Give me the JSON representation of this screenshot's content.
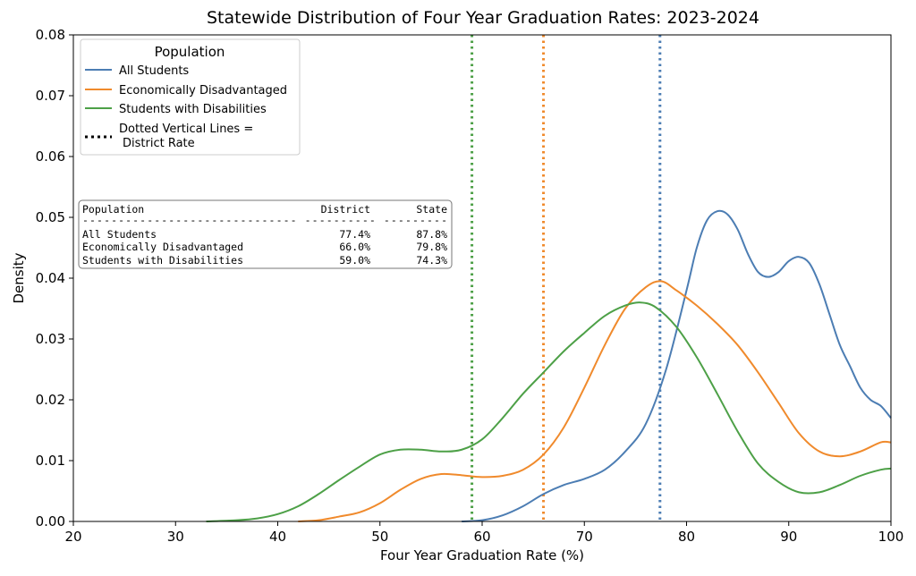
{
  "chart_data": {
    "type": "line",
    "title": "Statewide Distribution of Four Year Graduation Rates: 2023-2024",
    "xlabel": "Four Year Graduation Rate (%)",
    "ylabel": "Density",
    "xlim": [
      20,
      100
    ],
    "ylim": [
      0,
      0.08
    ],
    "x_ticks": [
      "20",
      "30",
      "40",
      "50",
      "60",
      "70",
      "80",
      "90",
      "100"
    ],
    "y_ticks": [
      "0.00",
      "0.01",
      "0.02",
      "0.03",
      "0.04",
      "0.05",
      "0.06",
      "0.07",
      "0.08"
    ],
    "grid": false,
    "legend": {
      "title": "Population",
      "placement": "upper-left",
      "entries": [
        "All Students",
        "Economically Disadvantaged",
        "Students with Disabilities"
      ],
      "extra_entry": "Dotted Vertical Lines =\n District Rate",
      "extra_entry_lines": [
        "Dotted Vertical Lines =",
        "District Rate"
      ]
    },
    "series": [
      {
        "name": "All Students",
        "color": "#4c7db3",
        "points": [
          [
            58,
            0
          ],
          [
            60,
            0.0002
          ],
          [
            62,
            0.001
          ],
          [
            64,
            0.0025
          ],
          [
            66,
            0.0045
          ],
          [
            68,
            0.006
          ],
          [
            70,
            0.007
          ],
          [
            72,
            0.0085
          ],
          [
            74,
            0.0115
          ],
          [
            76,
            0.016
          ],
          [
            78,
            0.025
          ],
          [
            80,
            0.038
          ],
          [
            81,
            0.045
          ],
          [
            82,
            0.0495
          ],
          [
            83,
            0.051
          ],
          [
            84,
            0.0505
          ],
          [
            85,
            0.048
          ],
          [
            86,
            0.044
          ],
          [
            87,
            0.041
          ],
          [
            88,
            0.0402
          ],
          [
            89,
            0.041
          ],
          [
            90,
            0.0428
          ],
          [
            91,
            0.0435
          ],
          [
            92,
            0.0425
          ],
          [
            93,
            0.039
          ],
          [
            94,
            0.034
          ],
          [
            95,
            0.029
          ],
          [
            96,
            0.0255
          ],
          [
            97,
            0.022
          ],
          [
            98,
            0.02
          ],
          [
            99,
            0.019
          ],
          [
            100,
            0.017
          ]
        ]
      },
      {
        "name": "Economically Disadvantaged",
        "color": "#f08a2c",
        "points": [
          [
            42,
            0
          ],
          [
            44,
            0.0002
          ],
          [
            46,
            0.0008
          ],
          [
            48,
            0.0015
          ],
          [
            50,
            0.003
          ],
          [
            52,
            0.0052
          ],
          [
            54,
            0.007
          ],
          [
            56,
            0.0078
          ],
          [
            58,
            0.0076
          ],
          [
            60,
            0.0073
          ],
          [
            62,
            0.0075
          ],
          [
            64,
            0.0085
          ],
          [
            66,
            0.011
          ],
          [
            68,
            0.0155
          ],
          [
            70,
            0.022
          ],
          [
            72,
            0.029
          ],
          [
            74,
            0.035
          ],
          [
            76,
            0.0385
          ],
          [
            77.5,
            0.0395
          ],
          [
            79,
            0.038
          ],
          [
            81,
            0.0355
          ],
          [
            83,
            0.0325
          ],
          [
            85,
            0.029
          ],
          [
            87,
            0.0245
          ],
          [
            89,
            0.0195
          ],
          [
            91,
            0.0145
          ],
          [
            93,
            0.0115
          ],
          [
            95,
            0.0107
          ],
          [
            97,
            0.0115
          ],
          [
            99,
            0.013
          ],
          [
            100,
            0.013
          ]
        ]
      },
      {
        "name": "Students with Disabilities",
        "color": "#4da047",
        "points": [
          [
            33,
            0
          ],
          [
            36,
            0.0002
          ],
          [
            38,
            0.0005
          ],
          [
            40,
            0.0012
          ],
          [
            42,
            0.0025
          ],
          [
            44,
            0.0045
          ],
          [
            46,
            0.0068
          ],
          [
            48,
            0.009
          ],
          [
            50,
            0.011
          ],
          [
            52,
            0.0118
          ],
          [
            54,
            0.0118
          ],
          [
            56,
            0.0115
          ],
          [
            58,
            0.0118
          ],
          [
            60,
            0.0135
          ],
          [
            62,
            0.017
          ],
          [
            64,
            0.021
          ],
          [
            66,
            0.0245
          ],
          [
            68,
            0.028
          ],
          [
            70,
            0.031
          ],
          [
            72,
            0.0338
          ],
          [
            74,
            0.0355
          ],
          [
            75.5,
            0.036
          ],
          [
            77,
            0.0352
          ],
          [
            79,
            0.032
          ],
          [
            81,
            0.027
          ],
          [
            83,
            0.021
          ],
          [
            85,
            0.0148
          ],
          [
            87,
            0.0095
          ],
          [
            89,
            0.0065
          ],
          [
            91,
            0.0048
          ],
          [
            93,
            0.0048
          ],
          [
            95,
            0.006
          ],
          [
            97,
            0.0075
          ],
          [
            99,
            0.0085
          ],
          [
            100,
            0.0087
          ]
        ]
      }
    ],
    "district_lines": [
      {
        "name": "All Students",
        "x": 77.4,
        "color": "#4c7db3"
      },
      {
        "name": "Economically Disadvantaged",
        "x": 66.0,
        "color": "#f08a2c"
      },
      {
        "name": "Students with Disabilities",
        "x": 59.0,
        "color": "#4da047"
      }
    ],
    "table": {
      "headers": [
        "Population",
        "District",
        "State"
      ],
      "divider": "------------------------------  ----------  ---------",
      "rows": [
        [
          "All Students",
          "77.4%",
          "87.8%"
        ],
        [
          "Economically Disadvantaged",
          "66.0%",
          "79.8%"
        ],
        [
          "Students with Disabilities",
          "59.0%",
          "74.3%"
        ]
      ]
    }
  }
}
